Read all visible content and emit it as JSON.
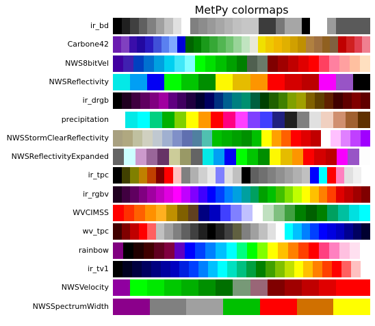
{
  "title": "MetPy colormaps",
  "chart_data": {
    "type": "colormap-swatches",
    "title": "MetPy colormaps",
    "colormaps": [
      {
        "name": "ir_bd",
        "colors": [
          "#000000",
          "#202020",
          "#404040",
          "#606060",
          "#808080",
          "#a0a0a0",
          "#c0c0c0",
          "#e0e0e0",
          "#ffffff",
          "#808080",
          "#8c8c8c",
          "#999999",
          "#a6a6a6",
          "#b3b3b3",
          "#c0c0c0",
          "#c6c6c6",
          "#c6c6c6",
          "#3c3c3c",
          "#3c3c3c",
          "#787878",
          "#a6a6a6",
          "#a6a6a6",
          "#000000",
          "#ffffff",
          "#ffffff",
          "#9b9b9b",
          "#5a5a5a",
          "#5a5a5a",
          "#5a5a5a",
          "#5a5a5a"
        ]
      },
      {
        "name": "Carbone42",
        "colors": [
          "#6a1cb0",
          "#8040c0",
          "#3a0eaa",
          "#2208a0",
          "#2a1cc0",
          "#4050d8",
          "#5a80f0",
          "#80a8ff",
          "#0000d8",
          "#006400",
          "#007c00",
          "#1a9a1a",
          "#36a836",
          "#52b652",
          "#70c470",
          "#98d498",
          "#c0e4c0",
          "#e8e8d8",
          "#f0e000",
          "#f0c800",
          "#f0b800",
          "#e0b000",
          "#d0a000",
          "#c09000",
          "#b08040",
          "#a07040",
          "#906020",
          "#806040",
          "#c00000",
          "#d02020",
          "#e04050",
          "#f08090"
        ]
      },
      {
        "name": "NWS8bitVel",
        "colors": [
          "#4000a0",
          "#4020b0",
          "#0040c0",
          "#0070d0",
          "#00a0e0",
          "#00d0f0",
          "#40e8f8",
          "#80ffff",
          "#00ff00",
          "#00e000",
          "#00c000",
          "#00a000",
          "#008000",
          "#506050",
          "#6a7a6a",
          "#800000",
          "#a00000",
          "#c00000",
          "#e00000",
          "#ff0000",
          "#ff4060",
          "#ff80a0",
          "#ffa0a0",
          "#ffc0a0",
          "#ffe0c0"
        ]
      },
      {
        "name": "NWSReflectivity",
        "colors": [
          "#04e9e7",
          "#019ff4",
          "#0300f4",
          "#02fd02",
          "#01c501",
          "#008e00",
          "#fdf802",
          "#e5bc00",
          "#fd9500",
          "#fd0000",
          "#d40000",
          "#bc0000",
          "#f800fd",
          "#9854c6",
          "#000000"
        ]
      },
      {
        "name": "ir_drgb",
        "colors": [
          "#000000",
          "#200020",
          "#400040",
          "#600060",
          "#800080",
          "#a000a0",
          "#600080",
          "#400060",
          "#200040",
          "#000030",
          "#000060",
          "#003080",
          "#006090",
          "#008080",
          "#009070",
          "#006040",
          "#004000",
          "#206000",
          "#408000",
          "#80a000",
          "#a0a000",
          "#806000",
          "#604000",
          "#602000",
          "#400000",
          "#600000",
          "#800000",
          "#600000"
        ]
      },
      {
        "name": "precipitation",
        "colors": [
          "#ffffff",
          "#04e9e7",
          "#00ffff",
          "#00d080",
          "#00b000",
          "#80d000",
          "#ffff00",
          "#ff9900",
          "#ff0000",
          "#ff0080",
          "#ff40ff",
          "#8040ff",
          "#4040ff",
          "#202080",
          "#202020",
          "#808080",
          "#e0e0e0",
          "#f0d0c0",
          "#d09070",
          "#a06030",
          "#603000"
        ]
      },
      {
        "name": "NWSStormClearReflectivity",
        "colors": [
          "#a8a080",
          "#b0a880",
          "#c0c0a0",
          "#d0d0c0",
          "#c0c8d0",
          "#a0b0d0",
          "#8090c8",
          "#6070b0",
          "#5080a0",
          "#50c0b0",
          "#00c000",
          "#00b000",
          "#00a000",
          "#009000",
          "#00c000",
          "#ffff00",
          "#ffa000",
          "#ff6000",
          "#ff0000",
          "#e00000",
          "#c00000",
          "#ffffff",
          "#ffc0ff",
          "#e080ff",
          "#c040ff",
          "#a000ff"
        ]
      },
      {
        "name": "NWSReflectivityExpanded",
        "colors": [
          "#646464",
          "#ccffff",
          "#cc99cc",
          "#996699",
          "#663366",
          "#cccc99",
          "#999966",
          "#646464",
          "#04e9e7",
          "#019ff4",
          "#0300f4",
          "#02fd02",
          "#01c501",
          "#008e00",
          "#fdf802",
          "#e5bc00",
          "#fd9500",
          "#fd0000",
          "#d40000",
          "#bc0000",
          "#f800fd",
          "#9854c6",
          "#fdfdfd"
        ]
      },
      {
        "name": "ir_tpc",
        "colors": [
          "#000000",
          "#404000",
          "#808000",
          "#c08000",
          "#c04000",
          "#800000",
          "#ff0000",
          "#ffc0c0",
          "#808080",
          "#b0b0b0",
          "#d0d0d0",
          "#e8e8e8",
          "#8080ff",
          "#e0e0e0",
          "#c0c0c0",
          "#000000",
          "#606060",
          "#707070",
          "#808080",
          "#909090",
          "#a0a0a0",
          "#b0b0b0",
          "#c0c0c0",
          "#0000ff",
          "#00ffff",
          "#ff0000",
          "#ff80c0",
          "#e0e0e0",
          "#f0f0f0",
          "#ffffff"
        ]
      },
      {
        "name": "ir_rgbv",
        "colors": [
          "#200020",
          "#400040",
          "#600060",
          "#800080",
          "#a000a0",
          "#c000c0",
          "#e000e0",
          "#ff00ff",
          "#c000ff",
          "#8000ff",
          "#4000ff",
          "#0000ff",
          "#0040ff",
          "#0080ff",
          "#00a0e0",
          "#00a0a0",
          "#00a060",
          "#00a000",
          "#00c000",
          "#40c000",
          "#80e000",
          "#c0ff00",
          "#ffff00",
          "#ffc000",
          "#ff8000",
          "#ff4000",
          "#e00000",
          "#c00000",
          "#a00000",
          "#800000"
        ]
      },
      {
        "name": "WVCIMSS",
        "colors": [
          "#ff0000",
          "#ff3000",
          "#ff6000",
          "#ff9000",
          "#ffb020",
          "#c09000",
          "#806000",
          "#604020",
          "#000080",
          "#0000c0",
          "#4040ff",
          "#8080ff",
          "#c0c0ff",
          "#ffffff",
          "#c0e0c0",
          "#80c080",
          "#40a040",
          "#008000",
          "#006000",
          "#008000",
          "#00a060",
          "#00c0a0",
          "#00e0e0",
          "#00ffff"
        ]
      },
      {
        "name": "wv_tpc",
        "colors": [
          "#400000",
          "#800000",
          "#c00000",
          "#ff0000",
          "#ff6060",
          "#c0c0c0",
          "#a0a0a0",
          "#808080",
          "#606060",
          "#404040",
          "#202020",
          "#000000",
          "#202020",
          "#404040",
          "#606040",
          "#808080",
          "#a0a0a0",
          "#c0c0c0",
          "#e0e0e0",
          "#ffffff",
          "#00ffff",
          "#00c0ff",
          "#0080ff",
          "#0040ff",
          "#0000ff",
          "#0000e0",
          "#0000c0",
          "#000090",
          "#000060",
          "#000030"
        ]
      },
      {
        "name": "rainbow",
        "colors": [
          "#800080",
          "#000000",
          "#200000",
          "#400000",
          "#600020",
          "#800040",
          "#6000c0",
          "#0000ff",
          "#0040ff",
          "#0080ff",
          "#00c0ff",
          "#00ffff",
          "#00ff80",
          "#00ff00",
          "#80ff00",
          "#ffff00",
          "#ffc000",
          "#ff8000",
          "#ff4000",
          "#ff0000",
          "#ff4080",
          "#ff80c0",
          "#ffc0e0",
          "#ffe0f0",
          "#ffffff"
        ]
      },
      {
        "name": "ir_tv1",
        "colors": [
          "#000000",
          "#000020",
          "#000040",
          "#000060",
          "#000080",
          "#0000a0",
          "#0000c0",
          "#0020e0",
          "#0040ff",
          "#0080ff",
          "#00c0ff",
          "#00ffff",
          "#00e0c0",
          "#00c080",
          "#00a040",
          "#008000",
          "#40a000",
          "#80c000",
          "#c0e000",
          "#ffff00",
          "#ffc000",
          "#ff8000",
          "#ff4000",
          "#ff0000",
          "#ff6060",
          "#ffc0c0",
          "#ffffff"
        ]
      },
      {
        "name": "NWSVelocity",
        "colors": [
          "#9000a0",
          "#00ff00",
          "#00e800",
          "#00c800",
          "#00b000",
          "#009000",
          "#007000",
          "#779977",
          "#996677",
          "#800000",
          "#a00000",
          "#c00000",
          "#e00000",
          "#ff0000",
          "#ff0000"
        ]
      },
      {
        "name": "NWSSpectrumWidth",
        "colors": [
          "#8b008b",
          "#808080",
          "#a0a0a0",
          "#00c000",
          "#ff0000",
          "#d07000",
          "#ffff00"
        ]
      }
    ]
  }
}
